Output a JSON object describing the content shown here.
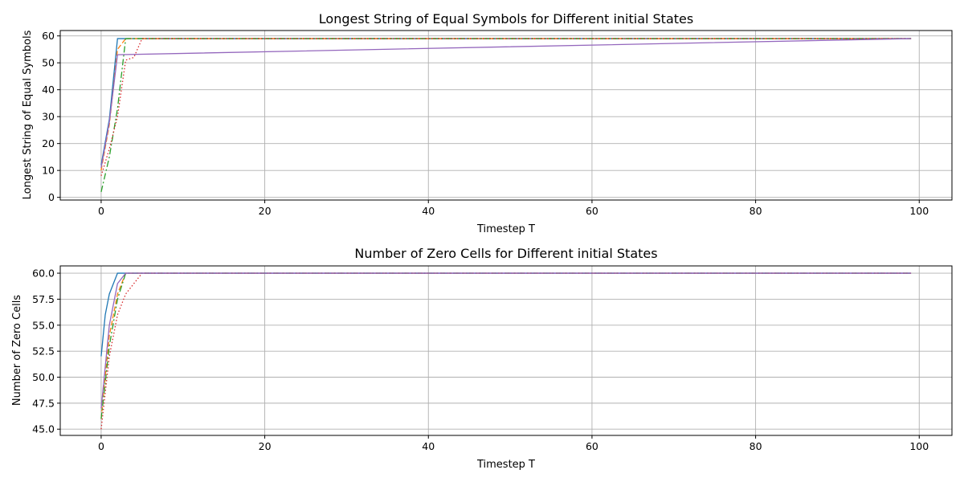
{
  "chart_data": [
    {
      "type": "line",
      "title": "Longest String of Equal Symbols for Different initial States",
      "xlabel": "Timestep T",
      "ylabel": "Longest String of Equal Symbols",
      "xlim": [
        -5,
        104
      ],
      "ylim": [
        -1,
        62
      ],
      "xticks": [
        0,
        20,
        40,
        60,
        80,
        100
      ],
      "yticks": [
        0,
        10,
        20,
        30,
        40,
        50,
        60
      ],
      "ytick_labels": [
        "0",
        "10",
        "20",
        "30",
        "40",
        "50",
        "60"
      ],
      "grid": true,
      "series": [
        {
          "color": "#1f77b4",
          "dash": "solid",
          "x": [
            0,
            1,
            2,
            99
          ],
          "y": [
            12,
            29,
            59,
            59
          ]
        },
        {
          "color": "#ff7f0e",
          "dash": "6,3",
          "x": [
            0,
            1,
            2,
            3,
            99
          ],
          "y": [
            10,
            27,
            55,
            59,
            59
          ]
        },
        {
          "color": "#2ca02c",
          "dash": "8,3,2,3",
          "x": [
            0,
            1,
            2,
            3,
            99
          ],
          "y": [
            2,
            15,
            33,
            59,
            59
          ]
        },
        {
          "color": "#d62728",
          "dash": "1.5,2.5",
          "x": [
            0,
            1,
            2,
            3,
            4,
            5,
            99
          ],
          "y": [
            8,
            18,
            30,
            51,
            52,
            59,
            59
          ]
        },
        {
          "color": "#9467bd",
          "dash": "solid",
          "x": [
            0,
            1,
            2,
            99
          ],
          "y": [
            11,
            28,
            53,
            59
          ]
        }
      ]
    },
    {
      "type": "line",
      "title": "Number of Zero Cells for Different initial States",
      "xlabel": "Timestep T",
      "ylabel": "Number of Zero Cells",
      "xlim": [
        -5,
        104
      ],
      "ylim": [
        44.4,
        60.7
      ],
      "xticks": [
        0,
        20,
        40,
        60,
        80,
        100
      ],
      "yticks": [
        45,
        47.5,
        50,
        52.5,
        55,
        57.5,
        60
      ],
      "ytick_labels": [
        "45.0",
        "47.5",
        "50.0",
        "52.5",
        "55.0",
        "57.5",
        "60.0"
      ],
      "grid": true,
      "series": [
        {
          "color": "#1f77b4",
          "dash": "solid",
          "x": [
            0,
            0.5,
            1,
            2,
            99
          ],
          "y": [
            52,
            56,
            58,
            60,
            60
          ]
        },
        {
          "color": "#ff7f0e",
          "dash": "6,3",
          "x": [
            0,
            1,
            2,
            3,
            99
          ],
          "y": [
            46,
            54,
            58,
            60,
            60
          ]
        },
        {
          "color": "#2ca02c",
          "dash": "8,3,2,3",
          "x": [
            0,
            1,
            2,
            3,
            99
          ],
          "y": [
            46,
            53,
            57.5,
            60,
            60
          ]
        },
        {
          "color": "#d62728",
          "dash": "1.5,2.5",
          "x": [
            0,
            1,
            2,
            3,
            4,
            5,
            99
          ],
          "y": [
            45,
            52,
            56,
            58,
            59,
            60,
            60
          ]
        },
        {
          "color": "#9467bd",
          "dash": "solid",
          "x": [
            0,
            1,
            2,
            3,
            99
          ],
          "y": [
            47,
            55,
            59,
            60,
            60
          ]
        }
      ]
    }
  ]
}
